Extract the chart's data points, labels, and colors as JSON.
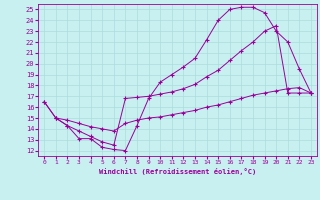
{
  "xlabel": "Windchill (Refroidissement éolien,°C)",
  "bg_color": "#c8f0f0",
  "line_color": "#990099",
  "grid_color": "#aadddd",
  "xlim": [
    -0.5,
    23.5
  ],
  "ylim": [
    11.5,
    25.5
  ],
  "xticks": [
    0,
    1,
    2,
    3,
    4,
    5,
    6,
    7,
    8,
    9,
    10,
    11,
    12,
    13,
    14,
    15,
    16,
    17,
    18,
    19,
    20,
    21,
    22,
    23
  ],
  "yticks": [
    12,
    13,
    14,
    15,
    16,
    17,
    18,
    19,
    20,
    21,
    22,
    23,
    24,
    25
  ],
  "line1_x": [
    0,
    1,
    2,
    3,
    4,
    5,
    6,
    7,
    8,
    9,
    10,
    11,
    12,
    13,
    14,
    15,
    16,
    17,
    18,
    19,
    20,
    21,
    22,
    23
  ],
  "line1_y": [
    16.5,
    15.0,
    14.3,
    13.1,
    13.1,
    12.3,
    12.1,
    12.0,
    14.3,
    16.8,
    18.3,
    19.0,
    19.7,
    20.5,
    22.2,
    24.0,
    25.0,
    25.2,
    25.2,
    24.7,
    23.0,
    22.0,
    19.5,
    17.3
  ],
  "line2_x": [
    1,
    2,
    3,
    4,
    5,
    6,
    7,
    8,
    9,
    10,
    11,
    12,
    13,
    14,
    15,
    16,
    17,
    18,
    19,
    20,
    21,
    22,
    23
  ],
  "line2_y": [
    15.0,
    14.3,
    13.8,
    13.3,
    12.8,
    12.5,
    16.8,
    16.9,
    17.0,
    17.2,
    17.4,
    17.7,
    18.1,
    18.8,
    19.4,
    20.3,
    21.2,
    22.0,
    23.0,
    23.5,
    17.3,
    17.3,
    17.3
  ],
  "line3_x": [
    0,
    1,
    2,
    3,
    4,
    5,
    6,
    7,
    8,
    9,
    10,
    11,
    12,
    13,
    14,
    15,
    16,
    17,
    18,
    19,
    20,
    21,
    22,
    23
  ],
  "line3_y": [
    16.5,
    15.0,
    14.8,
    14.5,
    14.2,
    14.0,
    13.8,
    14.5,
    14.8,
    15.0,
    15.1,
    15.3,
    15.5,
    15.7,
    16.0,
    16.2,
    16.5,
    16.8,
    17.1,
    17.3,
    17.5,
    17.7,
    17.8,
    17.3
  ]
}
